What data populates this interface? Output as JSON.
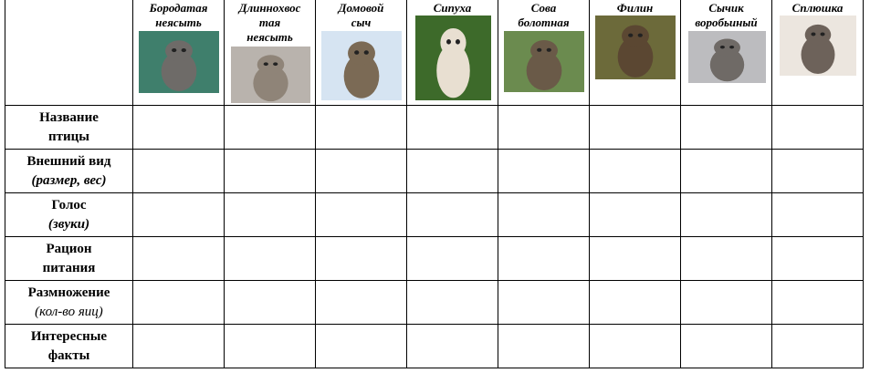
{
  "columns": [
    {
      "name": [
        "Бородатая",
        "неясыть"
      ],
      "image": "great-grey-owl-photo",
      "bg": "#3f7f6c",
      "owl": "#6e6b68",
      "w": 88,
      "h": 68
    },
    {
      "name": [
        "Длиннохвос",
        "тая",
        "неясыть"
      ],
      "image": "ural-owl-photo",
      "bg": "#b9b3ad",
      "owl": "#8f8478",
      "w": 87,
      "h": 62
    },
    {
      "name": [
        "Домовой",
        "сыч"
      ],
      "image": "little-owl-photo",
      "bg": "#d6e4f2",
      "owl": "#7b6a55",
      "w": 88,
      "h": 76
    },
    {
      "name": [
        "Сипуха"
      ],
      "image": "barn-owl-photo",
      "bg": "#3d6a2a",
      "owl": "#e8dfd1",
      "w": 83,
      "h": 93
    },
    {
      "name": [
        "Сова",
        "болотная"
      ],
      "image": "short-eared-owl-photo",
      "bg": "#6b8b4f",
      "owl": "#6a5a48",
      "w": 88,
      "h": 67
    },
    {
      "name": [
        "Филин"
      ],
      "image": "eagle-owl-photo",
      "bg": "#6c6a3a",
      "owl": "#5b4732",
      "w": 88,
      "h": 70
    },
    {
      "name": [
        "Сычик",
        "воробьиный"
      ],
      "image": "pygmy-owl-photo",
      "bg": "#bcbcbf",
      "owl": "#6f6a66",
      "w": 85,
      "h": 57
    },
    {
      "name": [
        "Сплюшка"
      ],
      "image": "scops-owl-photo",
      "bg": "#ece6df",
      "owl": "#6d625a",
      "w": 84,
      "h": 66
    }
  ],
  "rows": [
    {
      "title": [
        "Название",
        "птицы"
      ],
      "subtitle": ""
    },
    {
      "title": [
        "Внешний вид"
      ],
      "subtitle": "(размер, вес)",
      "subtitle_bold": true
    },
    {
      "title": [
        "Голос"
      ],
      "subtitle": "(звуки)",
      "subtitle_bold": true
    },
    {
      "title": [
        "Рацион",
        "питания"
      ],
      "subtitle": ""
    },
    {
      "title": [
        "Размножение"
      ],
      "subtitle": "(кол-во яиц)",
      "subtitle_bold": false
    },
    {
      "title": [
        "Интересные",
        "факты"
      ],
      "subtitle": ""
    }
  ]
}
